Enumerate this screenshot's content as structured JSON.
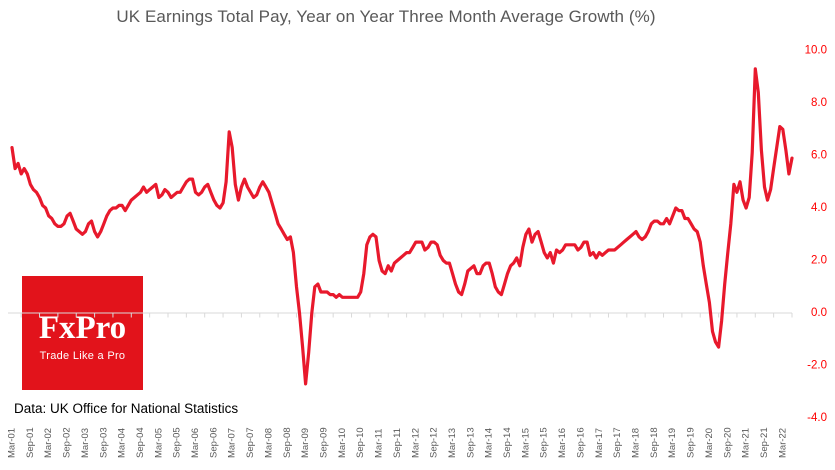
{
  "title": "UK Earnings Total Pay, Year on Year Three Month Average Growth (%)",
  "source_note": "Data: UK Office for National Statistics",
  "logo": {
    "name": "FxPro",
    "tagline": "Trade Like a Pro",
    "bg_color": "#e2131b",
    "text_color": "#ffffff"
  },
  "colors": {
    "line": "#e8192c",
    "y_axis_labels": "#ff0000",
    "x_axis_labels": "#595959",
    "title": "#595959",
    "gridline": "#d9d9d9",
    "source_text": "#000000",
    "background": "#ffffff"
  },
  "chart_data": {
    "type": "line",
    "title": "UK Earnings Total Pay, Year on Year Three Month Average Growth (%)",
    "xlabel": "",
    "ylabel": "",
    "x_start_month": "Mar-01",
    "x_end_month": "Jun-22",
    "x_tick_labels": [
      "Mar-01",
      "Sep-01",
      "Mar-02",
      "Sep-02",
      "Mar-03",
      "Sep-03",
      "Mar-04",
      "Sep-04",
      "Mar-05",
      "Sep-05",
      "Mar-06",
      "Sep-06",
      "Mar-07",
      "Sep-07",
      "Mar-08",
      "Sep-08",
      "Mar-09",
      "Sep-09",
      "Mar-10",
      "Sep-10",
      "Mar-11",
      "Sep-11",
      "Mar-12",
      "Sep-12",
      "Mar-13",
      "Sep-13",
      "Mar-14",
      "Sep-14",
      "Mar-15",
      "Sep-15",
      "Mar-16",
      "Sep-16",
      "Mar-17",
      "Sep-17",
      "Mar-18",
      "Sep-18",
      "Mar-19",
      "Sep-19",
      "Mar-20",
      "Sep-20",
      "Mar-21",
      "Sep-21",
      "Mar-22"
    ],
    "x_tick_interval_months": 6,
    "x_label_rotation_deg": -90,
    "y_ticks": [
      10.0,
      8.0,
      6.0,
      4.0,
      2.0,
      0.0,
      -2.0,
      -4.0
    ],
    "y_tick_labels": [
      "10.0",
      "8.0",
      "6.0",
      "4.0",
      "2.0",
      "0.0",
      "-2.0",
      "-4.0"
    ],
    "y_axis_side": "right",
    "ylim": [
      -4.7,
      10.7
    ],
    "grid": "zero-line-only",
    "legend": "none",
    "series": [
      {
        "name": "Total pay YoY 3-month average growth (%)",
        "frequency": "monthly",
        "values": [
          6.3,
          5.5,
          5.7,
          5.3,
          5.5,
          5.3,
          4.9,
          4.7,
          4.6,
          4.4,
          4.1,
          4.0,
          3.7,
          3.6,
          3.4,
          3.3,
          3.3,
          3.4,
          3.7,
          3.8,
          3.5,
          3.2,
          3.1,
          3.0,
          3.1,
          3.4,
          3.5,
          3.1,
          2.9,
          3.1,
          3.4,
          3.7,
          3.9,
          4.0,
          4.0,
          4.1,
          4.1,
          3.9,
          4.1,
          4.3,
          4.4,
          4.5,
          4.6,
          4.8,
          4.6,
          4.7,
          4.8,
          4.9,
          4.4,
          4.5,
          4.7,
          4.6,
          4.4,
          4.5,
          4.6,
          4.6,
          4.8,
          5.0,
          5.1,
          5.1,
          4.6,
          4.5,
          4.6,
          4.8,
          4.9,
          4.6,
          4.3,
          4.1,
          4.0,
          4.2,
          5.0,
          6.9,
          6.3,
          4.9,
          4.3,
          4.8,
          5.1,
          4.8,
          4.6,
          4.4,
          4.5,
          4.8,
          5.0,
          4.8,
          4.6,
          4.2,
          3.8,
          3.4,
          3.2,
          3.0,
          2.8,
          2.9,
          2.3,
          1.0,
          0.0,
          -1.3,
          -2.7,
          -1.5,
          0.0,
          1.0,
          1.1,
          0.8,
          0.8,
          0.8,
          0.7,
          0.7,
          0.6,
          0.7,
          0.6,
          0.6,
          0.6,
          0.6,
          0.6,
          0.6,
          0.8,
          1.5,
          2.6,
          2.9,
          3.0,
          2.9,
          2.0,
          1.6,
          1.5,
          1.8,
          1.6,
          1.9,
          2.0,
          2.1,
          2.2,
          2.3,
          2.3,
          2.5,
          2.7,
          2.7,
          2.7,
          2.4,
          2.5,
          2.7,
          2.7,
          2.6,
          2.2,
          2.0,
          1.9,
          1.9,
          1.5,
          1.1,
          0.8,
          0.7,
          1.1,
          1.6,
          1.7,
          1.8,
          1.5,
          1.5,
          1.8,
          1.9,
          1.9,
          1.5,
          1.0,
          0.8,
          0.7,
          1.1,
          1.5,
          1.8,
          1.9,
          2.1,
          1.8,
          2.5,
          3.0,
          3.2,
          2.7,
          3.0,
          3.1,
          2.7,
          2.3,
          2.1,
          2.3,
          1.9,
          2.4,
          2.3,
          2.4,
          2.6,
          2.6,
          2.6,
          2.6,
          2.4,
          2.5,
          2.7,
          2.7,
          2.2,
          2.3,
          2.1,
          2.3,
          2.2,
          2.3,
          2.4,
          2.4,
          2.4,
          2.5,
          2.6,
          2.7,
          2.8,
          2.9,
          3.0,
          3.1,
          2.9,
          2.8,
          2.9,
          3.1,
          3.4,
          3.5,
          3.5,
          3.4,
          3.4,
          3.6,
          3.4,
          3.7,
          4.0,
          3.9,
          3.9,
          3.6,
          3.6,
          3.4,
          3.2,
          3.1,
          2.7,
          1.8,
          1.1,
          0.4,
          -0.7,
          -1.1,
          -1.3,
          -0.3,
          1.1,
          2.3,
          3.4,
          4.9,
          4.6,
          5.0,
          4.3,
          4.0,
          4.4,
          6.1,
          9.3,
          8.4,
          6.2,
          4.8,
          4.3,
          4.7,
          5.5,
          6.3,
          7.1,
          7.0,
          6.2,
          5.3,
          5.9
        ]
      }
    ]
  }
}
